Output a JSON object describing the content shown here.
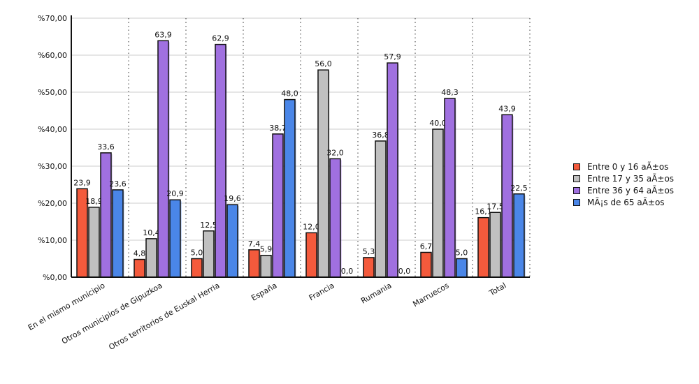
{
  "chart_data": {
    "type": "bar",
    "title": "",
    "xlabel": "",
    "ylabel": "",
    "ylim": [
      0,
      70
    ],
    "yticks": [
      "%0,00",
      "%10,00",
      "%20,00",
      "%30,00",
      "%40,00",
      "%50,00",
      "%60,00",
      "%70,00"
    ],
    "grid": true,
    "legend_position": "right",
    "categories": [
      "En el mismo municipio",
      "Otros municipios de Gipuzkoa",
      "Otros territorios de Euskal Herria",
      "España",
      "Francia",
      "Rumania",
      "Marruecos",
      "Total"
    ],
    "series": [
      {
        "name": "Entre 0 y 16 aÃ±os",
        "color": "#f45a3c",
        "values": [
          23.9,
          4.8,
          5.0,
          7.4,
          12.0,
          5.3,
          6.7,
          16.1
        ],
        "labels": [
          "23,9",
          "4,8",
          "5,0",
          "7,4",
          "12,0",
          "5,3",
          "6,7",
          "16,1"
        ]
      },
      {
        "name": "Entre 17 y 35 aÃ±os",
        "color": "#c0c0c0",
        "values": [
          18.9,
          10.4,
          12.5,
          5.9,
          56.0,
          36.8,
          40.0,
          17.5
        ],
        "labels": [
          "18,9",
          "10,4",
          "12,5",
          "5,9",
          "56,0",
          "36,8",
          "40,0",
          "17,5"
        ]
      },
      {
        "name": "Entre 36 y 64 aÃ±os",
        "color": "#a070e0",
        "values": [
          33.6,
          63.9,
          62.9,
          38.7,
          32.0,
          57.9,
          48.3,
          43.9
        ],
        "labels": [
          "33,6",
          "63,9",
          "62,9",
          "38,7",
          "32,0",
          "57,9",
          "48,3",
          "43,9"
        ]
      },
      {
        "name": "MÃ¡s de 65 aÃ±os",
        "color": "#4a86e8",
        "values": [
          23.6,
          20.9,
          19.6,
          48.0,
          0.0,
          0.0,
          5.0,
          22.5
        ],
        "labels": [
          "23,6",
          "20,9",
          "19,6",
          "48,0",
          "0,0",
          "0,0",
          "5,0",
          "22,5"
        ]
      }
    ]
  }
}
